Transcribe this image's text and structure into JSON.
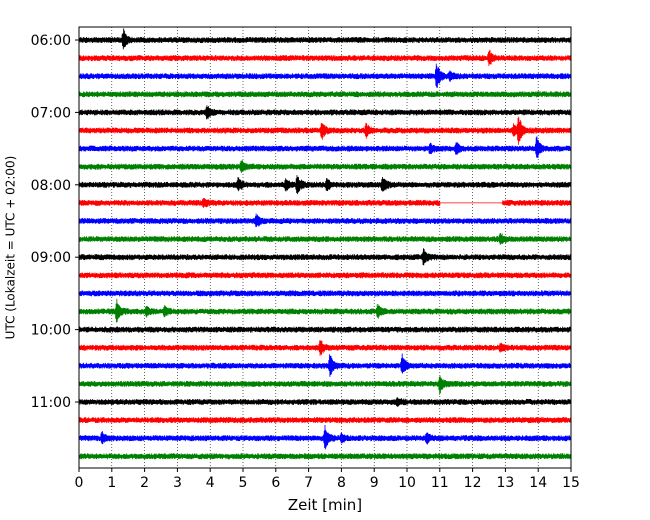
{
  "chart_data": {
    "type": "line",
    "subtype": "helicorder",
    "xlabel": "Zeit  [min]",
    "ylabel": "UTC (Lokalzeit = UTC + 02:00)",
    "xlim": [
      0,
      15
    ],
    "xticks": [
      0,
      1,
      2,
      3,
      4,
      5,
      6,
      7,
      8,
      9,
      10,
      11,
      12,
      13,
      14,
      15
    ],
    "y_tick_labels": [
      "06:00",
      "07:00",
      "08:00",
      "09:00",
      "10:00",
      "11:00"
    ],
    "grid": "vertical-dotted",
    "trace_colors": [
      "#000000",
      "#ff0000",
      "#0000ff",
      "#008000"
    ],
    "traces": [
      {
        "start": "06:00",
        "events": [
          {
            "t": 1.35,
            "amp": 10
          }
        ]
      },
      {
        "start": "06:15",
        "events": [
          {
            "t": 12.5,
            "amp": 8
          }
        ]
      },
      {
        "start": "06:30",
        "events": [
          {
            "t": 10.9,
            "amp": 14
          },
          {
            "t": 11.3,
            "amp": 4
          }
        ]
      },
      {
        "start": "06:45",
        "events": []
      },
      {
        "start": "07:00",
        "events": [
          {
            "t": 3.9,
            "amp": 7
          }
        ]
      },
      {
        "start": "07:15",
        "events": [
          {
            "t": 7.4,
            "amp": 9
          },
          {
            "t": 8.75,
            "amp": 7
          },
          {
            "t": 13.25,
            "amp": 6
          },
          {
            "t": 13.4,
            "amp": 15
          }
        ]
      },
      {
        "start": "07:30",
        "events": [
          {
            "t": 10.7,
            "amp": 6
          },
          {
            "t": 11.5,
            "amp": 6
          },
          {
            "t": 13.95,
            "amp": 12
          }
        ]
      },
      {
        "start": "07:45",
        "events": [
          {
            "t": 4.95,
            "amp": 6
          }
        ]
      },
      {
        "start": "08:00",
        "events": [
          {
            "t": 4.85,
            "amp": 7
          },
          {
            "t": 6.3,
            "amp": 6
          },
          {
            "t": 6.65,
            "amp": 10
          },
          {
            "t": 7.55,
            "amp": 6
          },
          {
            "t": 9.25,
            "amp": 9
          }
        ]
      },
      {
        "start": "08:15",
        "events": [
          {
            "t": 3.8,
            "amp": 4
          }
        ],
        "gap": [
          11.0,
          12.9
        ]
      },
      {
        "start": "08:30",
        "events": [
          {
            "t": 5.4,
            "amp": 7
          }
        ]
      },
      {
        "start": "08:45",
        "events": [
          {
            "t": 12.85,
            "amp": 5
          }
        ]
      },
      {
        "start": "09:00",
        "events": [
          {
            "t": 10.5,
            "amp": 8
          }
        ]
      },
      {
        "start": "09:15",
        "events": []
      },
      {
        "start": "09:30",
        "events": []
      },
      {
        "start": "09:45",
        "events": [
          {
            "t": 1.15,
            "amp": 12
          },
          {
            "t": 2.05,
            "amp": 5
          },
          {
            "t": 2.6,
            "amp": 5
          },
          {
            "t": 9.1,
            "amp": 7
          }
        ]
      },
      {
        "start": "10:00",
        "events": []
      },
      {
        "start": "10:15",
        "events": [
          {
            "t": 7.35,
            "amp": 8
          },
          {
            "t": 12.85,
            "amp": 4
          }
        ]
      },
      {
        "start": "10:30",
        "events": [
          {
            "t": 7.65,
            "amp": 12
          },
          {
            "t": 9.85,
            "amp": 10
          }
        ]
      },
      {
        "start": "10:45",
        "events": [
          {
            "t": 11.0,
            "amp": 9
          }
        ]
      },
      {
        "start": "11:00",
        "events": [
          {
            "t": 9.7,
            "amp": 4
          }
        ]
      },
      {
        "start": "11:15",
        "events": []
      },
      {
        "start": "11:30",
        "events": [
          {
            "t": 0.7,
            "amp": 6
          },
          {
            "t": 7.5,
            "amp": 11
          },
          {
            "t": 8.0,
            "amp": 4
          },
          {
            "t": 10.6,
            "amp": 5
          }
        ]
      },
      {
        "start": "11:45",
        "events": []
      }
    ]
  }
}
